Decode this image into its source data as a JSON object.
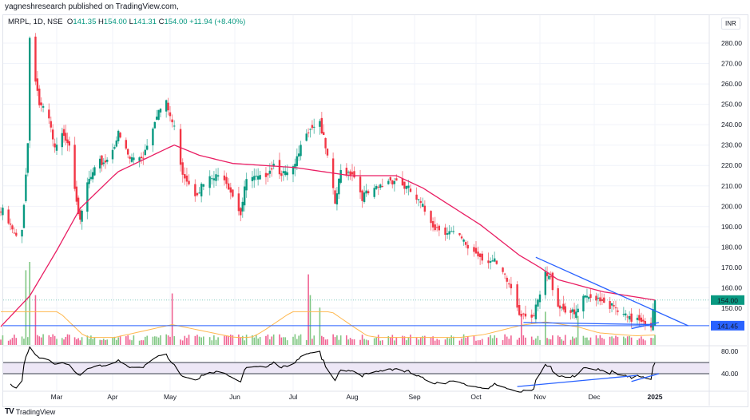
{
  "header": {
    "published": "yagneshresearch published on TradingView.com,"
  },
  "legend": {
    "symbol": "MRPL, 1D, NSE",
    "o_label": "O",
    "o": "141.35",
    "h_label": "H",
    "h": "154.00",
    "l_label": "L",
    "l": "141.31",
    "c_label": "C",
    "c": "154.00",
    "change": "+11.94 (+8.40%)"
  },
  "currency": "INR",
  "footer": {
    "brand": "TradingView",
    "logo": "tradingview-logo"
  },
  "colors": {
    "up": "#089981",
    "down": "#f23645",
    "ma": "#e91e63",
    "volume_ma": "#ffb74d",
    "trendline": "#2962ff",
    "rsi": "#000000",
    "rsi_band": "#ede7f6"
  },
  "price_labels": {
    "last": "154.00",
    "support": "141.45"
  },
  "chart_data": {
    "type": "candlestick",
    "symbol": "MRPL",
    "interval": "1D",
    "exchange": "NSE",
    "y_ticks": [
      "280.00",
      "270.00",
      "260.00",
      "250.00",
      "240.00",
      "230.00",
      "220.00",
      "210.00",
      "200.00",
      "190.00",
      "180.00",
      "170.00",
      "160.00",
      "150.00"
    ],
    "y_tick_values": [
      280,
      270,
      260,
      250,
      240,
      230,
      220,
      210,
      200,
      190,
      180,
      170,
      160,
      150
    ],
    "x_ticks": [
      "Mar",
      "Apr",
      "May",
      "Jun",
      "Jul",
      "Aug",
      "Sep",
      "Oct",
      "Nov",
      "Dec",
      "2025"
    ],
    "ylim": [
      134,
      290
    ],
    "last_candle": {
      "date": "2025-01-01",
      "open": 141.35,
      "high": 154.0,
      "low": 141.31,
      "close": 154.0
    },
    "close_anchors": [
      [
        "2024-02-02",
        197
      ],
      [
        "2024-02-09",
        184
      ],
      [
        "2024-02-12",
        188
      ],
      [
        "2024-02-15",
        231
      ],
      [
        "2024-02-16",
        283
      ],
      [
        "2024-02-21",
        250
      ],
      [
        "2024-02-26",
        242
      ],
      [
        "2024-02-29",
        227
      ],
      [
        "2024-03-05",
        236
      ],
      [
        "2024-03-08",
        231
      ],
      [
        "2024-03-14",
        191
      ],
      [
        "2024-03-18",
        211
      ],
      [
        "2024-03-25",
        221
      ],
      [
        "2024-03-29",
        223
      ],
      [
        "2024-04-04",
        235
      ],
      [
        "2024-04-10",
        223
      ],
      [
        "2024-04-17",
        225
      ],
      [
        "2024-04-24",
        246
      ],
      [
        "2024-04-29",
        250
      ],
      [
        "2024-05-03",
        238
      ],
      [
        "2024-05-07",
        217
      ],
      [
        "2024-05-13",
        207
      ],
      [
        "2024-05-20",
        213
      ],
      [
        "2024-05-27",
        215
      ],
      [
        "2024-06-04",
        197
      ],
      [
        "2024-06-07",
        213
      ],
      [
        "2024-06-14",
        213
      ],
      [
        "2024-06-21",
        221
      ],
      [
        "2024-06-27",
        215
      ],
      [
        "2024-07-02",
        219
      ],
      [
        "2024-07-08",
        238
      ],
      [
        "2024-07-15",
        242
      ],
      [
        "2024-07-19",
        223
      ],
      [
        "2024-07-23",
        201
      ],
      [
        "2024-07-26",
        217
      ],
      [
        "2024-08-01",
        217
      ],
      [
        "2024-08-06",
        205
      ],
      [
        "2024-08-12",
        207
      ],
      [
        "2024-08-19",
        213
      ],
      [
        "2024-08-23",
        213
      ],
      [
        "2024-08-30",
        207
      ],
      [
        "2024-09-05",
        199
      ],
      [
        "2024-09-11",
        190
      ],
      [
        "2024-09-17",
        188
      ],
      [
        "2024-09-23",
        184
      ],
      [
        "2024-09-27",
        180
      ],
      [
        "2024-10-03",
        176
      ],
      [
        "2024-10-10",
        172
      ],
      [
        "2024-10-18",
        160
      ],
      [
        "2024-10-22",
        148
      ],
      [
        "2024-10-25",
        148
      ],
      [
        "2024-10-29",
        146
      ],
      [
        "2024-11-04",
        166
      ],
      [
        "2024-11-07",
        164
      ],
      [
        "2024-11-11",
        152
      ],
      [
        "2024-11-18",
        148
      ],
      [
        "2024-11-20",
        146
      ],
      [
        "2024-11-25",
        154
      ],
      [
        "2024-12-02",
        156
      ],
      [
        "2024-12-06",
        154
      ],
      [
        "2024-12-13",
        148
      ],
      [
        "2024-12-19",
        144
      ],
      [
        "2024-12-23",
        146
      ],
      [
        "2024-12-27",
        144
      ],
      [
        "2024-12-30",
        142
      ],
      [
        "2025-01-01",
        154
      ]
    ],
    "moving_average": [
      [
        "2024-02-01",
        141
      ],
      [
        "2024-02-16",
        156
      ],
      [
        "2024-03-14",
        199
      ],
      [
        "2024-04-04",
        217
      ],
      [
        "2024-05-03",
        230
      ],
      [
        "2024-05-15",
        225
      ],
      [
        "2024-05-31",
        221
      ],
      [
        "2024-07-02",
        219
      ],
      [
        "2024-07-31",
        215
      ],
      [
        "2024-08-23",
        215
      ],
      [
        "2024-09-05",
        209
      ],
      [
        "2024-10-03",
        191
      ],
      [
        "2024-10-22",
        176
      ],
      [
        "2024-11-11",
        164
      ],
      [
        "2024-12-06",
        158
      ],
      [
        "2025-01-01",
        154
      ]
    ],
    "volume_spikes": [
      [
        "2024-02-14",
        0.9
      ],
      [
        "2024-02-16",
        1.0
      ],
      [
        "2024-02-19",
        0.6
      ],
      [
        "2024-05-02",
        0.62
      ],
      [
        "2024-07-09",
        0.85
      ],
      [
        "2024-07-10",
        0.6
      ],
      [
        "2024-07-15",
        0.45
      ],
      [
        "2024-10-23",
        0.35
      ],
      [
        "2024-11-04",
        0.4
      ],
      [
        "2024-11-22",
        0.35
      ],
      [
        "2025-01-01",
        0.12
      ]
    ],
    "horizontal_lines": [
      141.45
    ],
    "trendlines": [
      {
        "from": [
          "2024-10-30",
          175
        ],
        "to": [
          "2025-01-18",
          141.4
        ]
      },
      {
        "from": [
          "2024-10-24",
          143
        ],
        "to": [
          "2024-12-30",
          142
        ]
      },
      {
        "from": [
          "2024-12-20",
          140
        ],
        "to": [
          "2025-01-03",
          143
        ]
      }
    ],
    "rsi": {
      "y_ticks": [
        "80.00",
        "40.00"
      ],
      "band": [
        40,
        60
      ],
      "trendlines": [
        {
          "from": [
            "2024-10-21",
            17
          ],
          "to": [
            "2024-12-23",
            37
          ]
        },
        {
          "from": [
            "2024-12-20",
            26
          ],
          "to": [
            "2025-01-03",
            40
          ]
        }
      ]
    }
  }
}
